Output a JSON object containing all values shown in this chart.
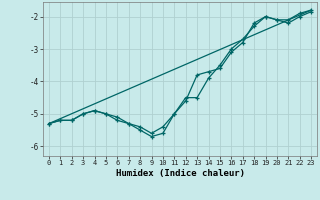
{
  "xlabel": "Humidex (Indice chaleur)",
  "ylabel": "",
  "background_color": "#c8eaea",
  "grid_color": "#b0d0d0",
  "line_color": "#006666",
  "xlim": [
    -0.5,
    23.5
  ],
  "ylim": [
    -6.3,
    -1.55
  ],
  "yticks": [
    -6,
    -5,
    -4,
    -3,
    -2
  ],
  "xticks": [
    0,
    1,
    2,
    3,
    4,
    5,
    6,
    7,
    8,
    9,
    10,
    11,
    12,
    13,
    14,
    15,
    16,
    17,
    18,
    19,
    20,
    21,
    22,
    23
  ],
  "series1_x": [
    0,
    1,
    2,
    3,
    4,
    5,
    6,
    7,
    8,
    9,
    10,
    11,
    12,
    13,
    14,
    15,
    16,
    17,
    18,
    19,
    20,
    21,
    22,
    23
  ],
  "series1_y": [
    -5.3,
    -5.2,
    -5.2,
    -5.0,
    -4.9,
    -5.0,
    -5.1,
    -5.3,
    -5.4,
    -5.6,
    -5.4,
    -5.0,
    -4.5,
    -4.5,
    -3.9,
    -3.5,
    -3.0,
    -2.7,
    -2.3,
    -2.0,
    -2.1,
    -2.1,
    -1.9,
    -1.8
  ],
  "series2_x": [
    0,
    1,
    2,
    3,
    4,
    5,
    6,
    7,
    8,
    9,
    10,
    11,
    12,
    13,
    14,
    15,
    16,
    17,
    18,
    19,
    20,
    21,
    22,
    23
  ],
  "series2_y": [
    -5.3,
    -5.2,
    -5.2,
    -5.0,
    -4.9,
    -5.0,
    -5.2,
    -5.3,
    -5.5,
    -5.7,
    -5.6,
    -5.0,
    -4.6,
    -3.8,
    -3.7,
    -3.6,
    -3.1,
    -2.8,
    -2.2,
    -2.0,
    -2.1,
    -2.2,
    -2.0,
    -1.85
  ],
  "series3_x": [
    0,
    23
  ],
  "series3_y": [
    -5.3,
    -1.8
  ]
}
